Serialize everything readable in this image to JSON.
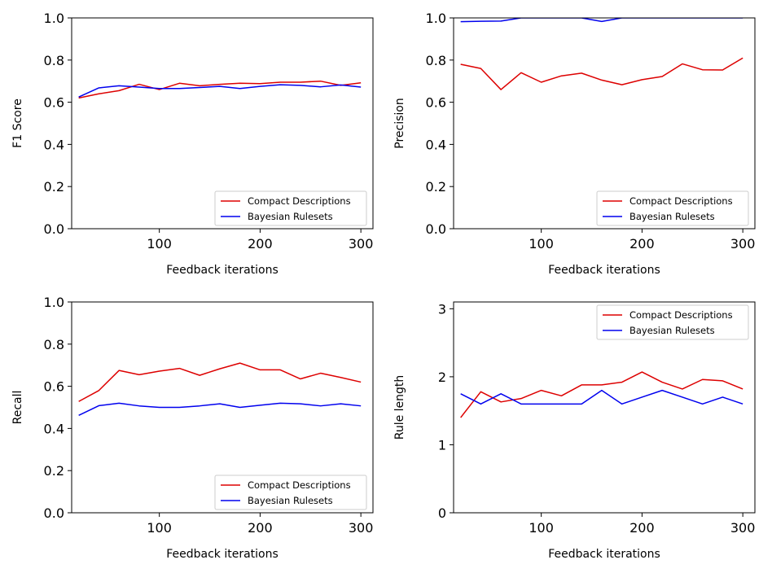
{
  "chart_data": [
    {
      "type": "line",
      "xlabel": "Feedback iterations",
      "ylabel": "F1 Score",
      "xlim": [
        13,
        312
      ],
      "ylim": [
        0,
        1.0
      ],
      "xticks": [
        100,
        200,
        300
      ],
      "xtick_labels": [
        "100",
        "200",
        "300"
      ],
      "yticks": [
        0,
        0.2,
        0.4,
        0.6,
        0.8,
        1.0
      ],
      "ytick_labels": [
        "0.0",
        "0.2",
        "0.4",
        "0.6",
        "0.8",
        "1.0"
      ],
      "legend_position": "lower-right",
      "x": [
        20,
        40,
        60,
        80,
        100,
        120,
        140,
        160,
        180,
        200,
        220,
        240,
        260,
        280,
        300
      ],
      "series": [
        {
          "name": "Compact Descriptions",
          "color": "#dd0000",
          "values": [
            0.62,
            0.64,
            0.655,
            0.685,
            0.66,
            0.69,
            0.678,
            0.685,
            0.69,
            0.688,
            0.695,
            0.695,
            0.7,
            0.68,
            0.692
          ]
        },
        {
          "name": "Bayesian Rulesets",
          "color": "#0000ee",
          "values": [
            0.625,
            0.668,
            0.678,
            0.672,
            0.665,
            0.665,
            0.67,
            0.675,
            0.665,
            0.675,
            0.683,
            0.68,
            0.673,
            0.682,
            0.672
          ]
        }
      ]
    },
    {
      "type": "line",
      "xlabel": "Feedback iterations",
      "ylabel": "Precision",
      "xlim": [
        13,
        312
      ],
      "ylim": [
        0,
        1.0
      ],
      "xticks": [
        100,
        200,
        300
      ],
      "xtick_labels": [
        "100",
        "200",
        "300"
      ],
      "yticks": [
        0,
        0.2,
        0.4,
        0.6,
        0.8,
        1.0
      ],
      "ytick_labels": [
        "0.0",
        "0.2",
        "0.4",
        "0.6",
        "0.8",
        "1.0"
      ],
      "legend_position": "lower-right",
      "x": [
        20,
        40,
        60,
        80,
        100,
        120,
        140,
        160,
        180,
        200,
        220,
        240,
        260,
        280,
        300
      ],
      "series": [
        {
          "name": "Compact Descriptions",
          "color": "#dd0000",
          "values": [
            0.78,
            0.76,
            0.66,
            0.74,
            0.695,
            0.725,
            0.738,
            0.705,
            0.683,
            0.707,
            0.722,
            0.782,
            0.754,
            0.753,
            0.81
          ]
        },
        {
          "name": "Bayesian Rulesets",
          "color": "#0000ee",
          "values": [
            0.982,
            0.984,
            0.985,
            1.0,
            1.0,
            1.0,
            1.0,
            0.983,
            1.0,
            1.0,
            1.0,
            1.0,
            1.0,
            1.0,
            1.0
          ]
        }
      ]
    },
    {
      "type": "line",
      "xlabel": "Feedback iterations",
      "ylabel": "Recall",
      "xlim": [
        13,
        312
      ],
      "ylim": [
        0,
        1.0
      ],
      "xticks": [
        100,
        200,
        300
      ],
      "xtick_labels": [
        "100",
        "200",
        "300"
      ],
      "yticks": [
        0,
        0.2,
        0.4,
        0.6,
        0.8,
        1.0
      ],
      "ytick_labels": [
        "0.0",
        "0.2",
        "0.4",
        "0.6",
        "0.8",
        "1.0"
      ],
      "legend_position": "lower-right",
      "x": [
        20,
        40,
        60,
        80,
        100,
        120,
        140,
        160,
        180,
        200,
        220,
        240,
        260,
        280,
        300
      ],
      "series": [
        {
          "name": "Compact Descriptions",
          "color": "#dd0000",
          "values": [
            0.528,
            0.58,
            0.675,
            0.655,
            0.672,
            0.685,
            0.652,
            0.683,
            0.71,
            0.678,
            0.678,
            0.635,
            0.662,
            0.642,
            0.62
          ]
        },
        {
          "name": "Bayesian Rulesets",
          "color": "#0000ee",
          "values": [
            0.462,
            0.508,
            0.52,
            0.507,
            0.5,
            0.5,
            0.507,
            0.517,
            0.5,
            0.51,
            0.52,
            0.517,
            0.507,
            0.517,
            0.507
          ]
        }
      ]
    },
    {
      "type": "line",
      "xlabel": "Feedback iterations",
      "ylabel": "Rule length",
      "xlim": [
        13,
        312
      ],
      "ylim": [
        0,
        3.1
      ],
      "xticks": [
        100,
        200,
        300
      ],
      "xtick_labels": [
        "100",
        "200",
        "300"
      ],
      "yticks": [
        0,
        1,
        2,
        3
      ],
      "ytick_labels": [
        "0",
        "1",
        "2",
        "3"
      ],
      "legend_position": "upper-right",
      "x": [
        20,
        40,
        60,
        80,
        100,
        120,
        140,
        160,
        180,
        200,
        220,
        240,
        260,
        280,
        300
      ],
      "series": [
        {
          "name": "Compact Descriptions",
          "color": "#dd0000",
          "values": [
            1.4,
            1.78,
            1.63,
            1.68,
            1.8,
            1.72,
            1.88,
            1.88,
            1.92,
            2.07,
            1.92,
            1.82,
            1.96,
            1.94,
            1.82
          ]
        },
        {
          "name": "Bayesian Rulesets",
          "color": "#0000ee",
          "values": [
            1.75,
            1.6,
            1.75,
            1.6,
            1.6,
            1.6,
            1.6,
            1.8,
            1.6,
            1.7,
            1.8,
            1.7,
            1.6,
            1.7,
            1.6
          ]
        }
      ]
    }
  ]
}
